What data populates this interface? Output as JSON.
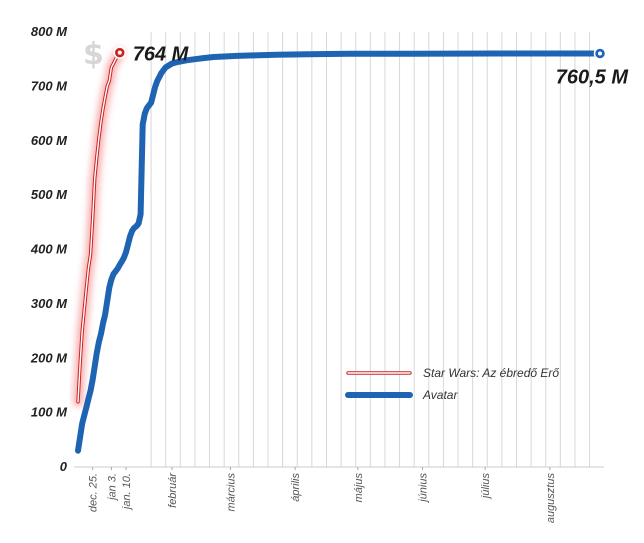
{
  "chart_data": {
    "type": "line",
    "title": "",
    "xlabel": "",
    "ylabel": "",
    "ylim": [
      0,
      800
    ],
    "y_ticks": [
      "0",
      "100 M",
      "200 M",
      "300 M",
      "400 M",
      "500 M",
      "600 M",
      "700 M",
      "800 M"
    ],
    "y_tick_values": [
      0,
      100,
      200,
      300,
      400,
      500,
      600,
      700,
      800
    ],
    "x_domain_days": [
      0,
      250
    ],
    "x_ticks": [
      {
        "label": "dec. 25.",
        "day": 7
      },
      {
        "label": "jan 3.",
        "day": 16
      },
      {
        "label": "jan. 10.",
        "day": 23
      },
      {
        "label": "február",
        "day": 45
      },
      {
        "label": "március",
        "day": 73
      },
      {
        "label": "április",
        "day": 104
      },
      {
        "label": "május",
        "day": 134
      },
      {
        "label": "június",
        "day": 165
      },
      {
        "label": "július",
        "day": 195
      },
      {
        "label": "augusztus",
        "day": 226
      }
    ],
    "grid": "vertical lines (daily spacing in first weeks, weekly afterwards)",
    "currency_symbol": "$",
    "legend_position": "bottom-right",
    "series": [
      {
        "name": "Star Wars: Az ébredő Erő",
        "color": "#cc2222",
        "style": "glow",
        "end_label": "764 M",
        "x": [
          0,
          1,
          2,
          3,
          4,
          5,
          6,
          7,
          8,
          9,
          10,
          11,
          12,
          13,
          14,
          15,
          16,
          17,
          18,
          19,
          20
        ],
        "y": [
          120,
          190,
          250,
          290,
          330,
          365,
          390,
          455,
          530,
          570,
          605,
          635,
          660,
          680,
          700,
          710,
          735,
          742,
          750,
          757,
          762
        ]
      },
      {
        "name": "Avatar",
        "color": "#1f64b3",
        "style": "solid",
        "end_label": "760,5 M",
        "x": [
          0,
          1,
          2,
          3,
          4,
          5,
          6,
          7,
          8,
          9,
          10,
          11,
          12,
          13,
          14,
          15,
          16,
          17,
          18,
          19,
          20,
          21,
          22,
          23,
          24,
          25,
          26,
          27,
          28,
          29,
          30,
          31,
          32,
          33,
          34,
          35,
          36,
          37,
          38,
          40,
          42,
          45,
          48,
          52,
          56,
          60,
          65,
          70,
          76,
          84,
          95,
          110,
          130,
          160,
          200,
          250
        ],
        "y": [
          30,
          55,
          80,
          95,
          110,
          125,
          140,
          160,
          185,
          210,
          230,
          245,
          265,
          280,
          305,
          330,
          345,
          355,
          360,
          365,
          372,
          378,
          385,
          395,
          410,
          425,
          435,
          440,
          443,
          448,
          465,
          630,
          650,
          660,
          665,
          670,
          685,
          700,
          710,
          725,
          735,
          742,
          745,
          748,
          750,
          752,
          754,
          755,
          756,
          757,
          758,
          759,
          760,
          760,
          760.5,
          760.5
        ]
      }
    ]
  }
}
